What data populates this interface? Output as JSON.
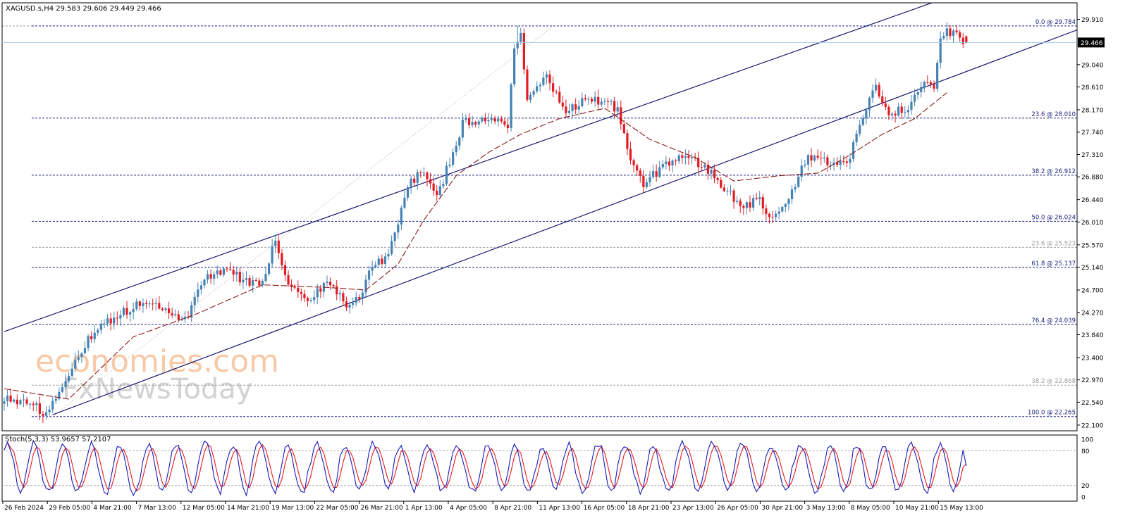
{
  "symbol_header": "XAGUSD.s,H4  29.583 29.606 29.449 29.466",
  "watermark": {
    "line1": "economies.com",
    "line2": "FxNewsToday"
  },
  "indicator_label": "Stoch(5,3,3) 53.9657 57.2107",
  "current_price_label": "29.466",
  "colors": {
    "bull": "#4682b4",
    "bear": "#e31b23",
    "channel": "#191970",
    "ma": "#8b1a1a",
    "fib_main": "#1a237e",
    "fib_secondary": "#9e9e9e",
    "stoch_main": "#1a1ab8",
    "stoch_signal": "#e31b23",
    "price_line": "#a7c7e7",
    "watermark_orange": "#f5b78a",
    "watermark_gray": "#c8c8c8"
  },
  "fib_levels": [
    {
      "label": "0.0 @ 29.784",
      "value": 29.784,
      "kind": "main"
    },
    {
      "label": "23.6 @ 28.010",
      "value": 28.01,
      "kind": "main"
    },
    {
      "label": "38.2 @ 26.912",
      "value": 26.912,
      "kind": "main"
    },
    {
      "label": "50.0 @ 26.024",
      "value": 26.024,
      "kind": "main"
    },
    {
      "label": "23.6 @ 25.523",
      "value": 25.523,
      "kind": "secondary"
    },
    {
      "label": "61.8 @ 25.137",
      "value": 25.137,
      "kind": "main"
    },
    {
      "label": "76.4 @ 24.039",
      "value": 24.039,
      "kind": "main"
    },
    {
      "label": "38.2 @ 22.868",
      "value": 22.868,
      "kind": "secondary"
    },
    {
      "label": "100.0 @ 22.265",
      "value": 22.265,
      "kind": "main"
    }
  ],
  "chart_data": {
    "type": "candlestick",
    "title": "XAGUSD.s,H4",
    "y_ticks": [
      29.91,
      29.04,
      28.61,
      28.17,
      27.74,
      27.31,
      26.88,
      26.44,
      26.01,
      25.57,
      25.14,
      24.7,
      24.27,
      23.84,
      23.4,
      22.97,
      22.54,
      22.1
    ],
    "y_tick_labels": [
      "29.910",
      "29.040",
      "28.610",
      "28.170",
      "27.740",
      "27.310",
      "26.880",
      "26.440",
      "26.010",
      "25.570",
      "25.140",
      "24.700",
      "24.270",
      "23.840",
      "23.400",
      "22.970",
      "22.540",
      "22.100"
    ],
    "ylim": [
      21.99,
      30.23
    ],
    "x_labels": [
      "26 Feb 2024",
      "29 Feb 05:00",
      "4 Mar 21:00",
      "7 Mar 13:00",
      "12 Mar 05:00",
      "14 Mar 21:00",
      "19 Mar 13:00",
      "22 Mar 05:00",
      "26 Mar 21:00",
      "1 Apr 13:00",
      "4 Apr 05:00",
      "8 Apr 21:00",
      "11 Apr 13:00",
      "16 Apr 05:00",
      "18 Apr 21:00",
      "23 Apr 13:00",
      "26 Apr 05:00",
      "30 Apr 21:00",
      "3 May 13:00",
      "8 May 05:00",
      "10 May 21:00",
      "15 May 13:00"
    ],
    "last_ohlc": {
      "open": 29.583,
      "high": 29.606,
      "low": 29.449,
      "close": 29.466
    },
    "price_waypoints": [
      [
        0,
        22.62
      ],
      [
        8,
        22.55
      ],
      [
        13,
        22.3
      ],
      [
        18,
        22.8
      ],
      [
        23,
        23.4
      ],
      [
        28,
        23.95
      ],
      [
        36,
        24.25
      ],
      [
        44,
        24.5
      ],
      [
        50,
        24.35
      ],
      [
        56,
        24.1
      ],
      [
        62,
        24.9
      ],
      [
        68,
        25.1
      ],
      [
        74,
        24.9
      ],
      [
        80,
        24.8
      ],
      [
        84,
        25.7
      ],
      [
        88,
        24.8
      ],
      [
        94,
        24.55
      ],
      [
        100,
        24.8
      ],
      [
        106,
        24.45
      ],
      [
        110,
        24.6
      ],
      [
        114,
        25.15
      ],
      [
        118,
        25.3
      ],
      [
        122,
        26.0
      ],
      [
        126,
        26.8
      ],
      [
        130,
        27.0
      ],
      [
        134,
        26.45
      ],
      [
        138,
        27.2
      ],
      [
        142,
        27.9
      ],
      [
        150,
        28.05
      ],
      [
        156,
        27.8
      ],
      [
        158,
        29.4
      ],
      [
        160,
        29.7
      ],
      [
        162,
        28.3
      ],
      [
        168,
        28.8
      ],
      [
        174,
        28.1
      ],
      [
        180,
        28.4
      ],
      [
        186,
        28.3
      ],
      [
        190,
        28.2
      ],
      [
        194,
        27.2
      ],
      [
        198,
        26.7
      ],
      [
        204,
        27.1
      ],
      [
        210,
        27.3
      ],
      [
        216,
        27.1
      ],
      [
        220,
        26.9
      ],
      [
        224,
        26.6
      ],
      [
        228,
        26.35
      ],
      [
        234,
        26.4
      ],
      [
        238,
        26.1
      ],
      [
        244,
        26.6
      ],
      [
        248,
        27.2
      ],
      [
        252,
        27.3
      ],
      [
        258,
        27.05
      ],
      [
        262,
        27.3
      ],
      [
        266,
        28.0
      ],
      [
        270,
        28.65
      ],
      [
        274,
        28.1
      ],
      [
        280,
        28.2
      ],
      [
        284,
        28.7
      ],
      [
        288,
        28.65
      ],
      [
        290,
        29.5
      ],
      [
        292,
        29.7
      ],
      [
        296,
        29.55
      ],
      [
        298,
        29.466
      ]
    ],
    "ma_points": [
      [
        0,
        22.8
      ],
      [
        20,
        22.6
      ],
      [
        40,
        23.8
      ],
      [
        60,
        24.25
      ],
      [
        80,
        24.8
      ],
      [
        100,
        24.75
      ],
      [
        112,
        24.7
      ],
      [
        122,
        25.2
      ],
      [
        130,
        26.05
      ],
      [
        140,
        26.9
      ],
      [
        150,
        27.35
      ],
      [
        160,
        27.7
      ],
      [
        172,
        28.0
      ],
      [
        186,
        28.2
      ],
      [
        200,
        27.6
      ],
      [
        214,
        27.25
      ],
      [
        226,
        26.8
      ],
      [
        240,
        26.9
      ],
      [
        252,
        26.95
      ],
      [
        262,
        27.3
      ],
      [
        272,
        27.7
      ],
      [
        282,
        28.0
      ],
      [
        288,
        28.3
      ],
      [
        292,
        28.5
      ]
    ],
    "channel_upper": {
      "from": [
        0,
        23.9
      ],
      "to": [
        286,
        30.2
      ]
    },
    "channel_lower": {
      "from": [
        15,
        22.3
      ],
      "to": [
        305,
        29.07
      ]
    },
    "stochastic": {
      "name": "Stoch(5,3,3)",
      "main": 53.9657,
      "signal": 57.2107,
      "levels": [
        80,
        20
      ],
      "ylim": [
        0,
        100
      ],
      "tick_labels": [
        "100",
        "80",
        "20",
        "0"
      ]
    }
  }
}
